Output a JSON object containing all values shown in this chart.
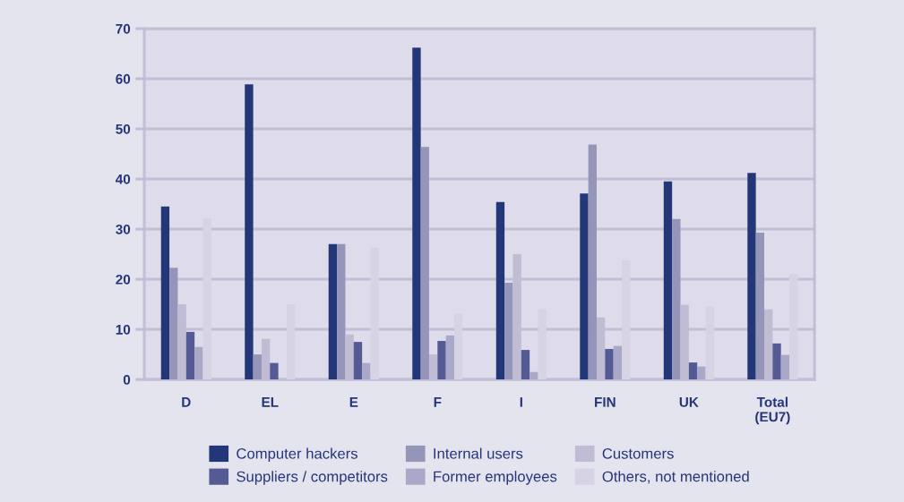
{
  "chart_data": {
    "type": "bar",
    "categories": [
      "D",
      "EL",
      "E",
      "F",
      "I",
      "FIN",
      "UK",
      "Total\n(EU7)"
    ],
    "series": [
      {
        "name": "Computer hackers",
        "color": "#233677",
        "values": [
          34.5,
          58.9,
          27.0,
          66.2,
          35.4,
          37.1,
          39.5,
          41.2
        ]
      },
      {
        "name": "Internal users",
        "color": "#9594b9",
        "values": [
          22.3,
          5.0,
          27.0,
          46.4,
          19.3,
          46.9,
          32.0,
          29.3
        ]
      },
      {
        "name": "Customers",
        "color": "#bfbcd4",
        "values": [
          15.0,
          8.1,
          9.0,
          5.0,
          25.0,
          12.4,
          14.9,
          14.0
        ]
      },
      {
        "name": "Suppliers / competitors",
        "color": "#545a93",
        "values": [
          9.5,
          3.3,
          7.5,
          7.7,
          5.9,
          6.1,
          3.4,
          7.2
        ]
      },
      {
        "name": "Former employees",
        "color": "#aaa8c8",
        "values": [
          6.5,
          null,
          3.3,
          8.8,
          1.5,
          6.7,
          2.6,
          4.9
        ]
      },
      {
        "name": "Others, not mentioned",
        "color": "#d5d3e4",
        "values": [
          32.1,
          15.0,
          26.3,
          13.1,
          14.0,
          23.8,
          14.5,
          21.1
        ]
      }
    ],
    "ylim": [
      0,
      70
    ],
    "yticks": [
      0,
      10,
      20,
      30,
      40,
      50,
      60,
      70
    ],
    "grid": "y",
    "legend": "bottom"
  }
}
